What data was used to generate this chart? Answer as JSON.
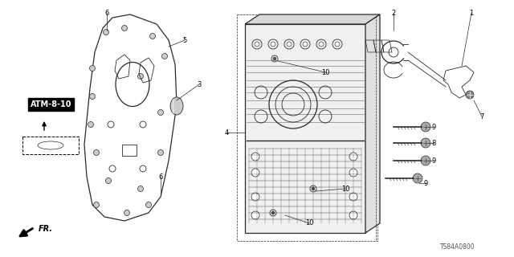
{
  "bg_color": "#ffffff",
  "line_color": "#2a2a2a",
  "text_color": "#000000",
  "code": "TS84A0800",
  "atm_label": "ATM-8-10"
}
